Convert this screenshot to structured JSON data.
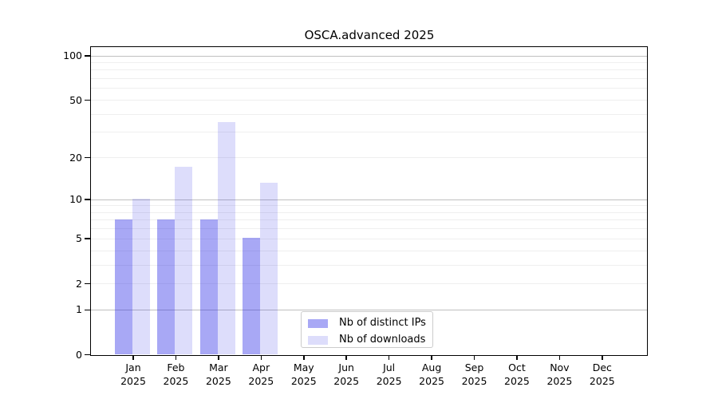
{
  "title": "OSCA.advanced 2025",
  "chart_data": {
    "type": "bar",
    "title": "OSCA.advanced 2025",
    "categories": [
      "Jan",
      "Feb",
      "Mar",
      "Apr",
      "May",
      "Jun",
      "Jul",
      "Aug",
      "Sep",
      "Oct",
      "Nov",
      "Dec"
    ],
    "year": "2025",
    "series": [
      {
        "name": "Nb of distinct IPs",
        "color": "rgba(25,25,230,0.38)",
        "values": [
          7,
          7,
          7,
          5,
          0,
          0,
          0,
          0,
          0,
          0,
          0,
          0
        ]
      },
      {
        "name": "Nb of downloads",
        "color": "rgba(25,25,230,0.15)",
        "values": [
          10,
          17,
          35,
          13,
          0,
          0,
          0,
          0,
          0,
          0,
          0,
          0
        ]
      }
    ],
    "y_scale": "log10(1+v)",
    "y_ticks": [
      0,
      1,
      2,
      5,
      10,
      20,
      50,
      100
    ],
    "ylim": [
      0,
      115
    ],
    "grid_major": [
      1,
      10,
      100
    ],
    "grid_minor": [
      2,
      3,
      4,
      5,
      6,
      7,
      8,
      9,
      20,
      30,
      40,
      50,
      60,
      70,
      80,
      90
    ],
    "grid": "on",
    "legend_position": "lower-center-inside",
    "xlabel": "",
    "ylabel": ""
  },
  "colors": {
    "bar_dark": "rgba(25,25,230,0.38)",
    "bar_light": "rgba(25,25,230,0.15)",
    "grid_major": "#c0c0c0",
    "grid_minor": "#efefef",
    "axis": "#000000",
    "legend_border": "#cccccc"
  }
}
